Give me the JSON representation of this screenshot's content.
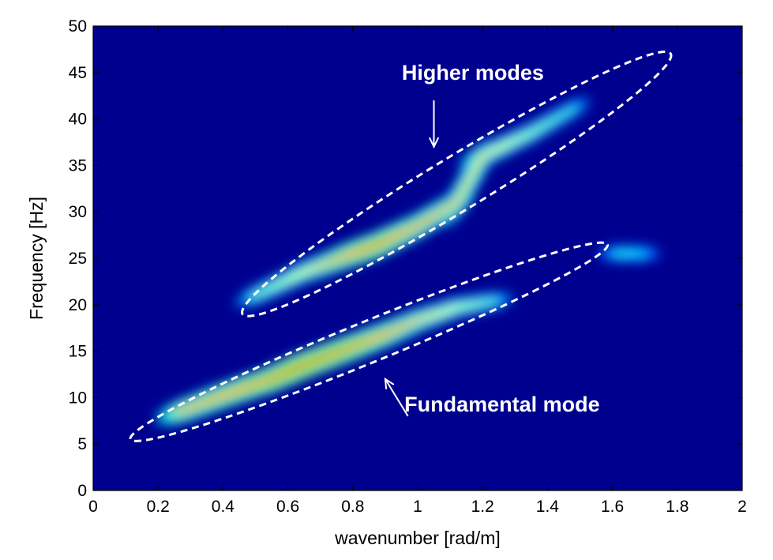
{
  "chart_data": {
    "type": "heatmap",
    "title": "",
    "xlabel": "wavenumber [rad/m]",
    "ylabel": "Frequency [Hz]",
    "xlim": [
      0,
      2
    ],
    "ylim": [
      0,
      50
    ],
    "xticks": [
      0,
      0.2,
      0.4,
      0.6,
      0.8,
      1,
      1.2,
      1.4,
      1.6,
      1.8,
      2
    ],
    "xtick_labels": [
      "0",
      "0.2",
      "0.4",
      "0.6",
      "0.8",
      "1",
      "1.2",
      "1.4",
      "1.6",
      "1.8",
      "2"
    ],
    "yticks": [
      0,
      5,
      10,
      15,
      20,
      25,
      30,
      35,
      40,
      45,
      50
    ],
    "ytick_labels": [
      "0",
      "5",
      "10",
      "15",
      "20",
      "25",
      "30",
      "35",
      "40",
      "45",
      "50"
    ],
    "grid": false,
    "colormap": "jet",
    "colors": {
      "background": "#00008f",
      "low": "#0000ff",
      "mid": "#00ffff",
      "high": "#ffff00",
      "peak": "#8b0000",
      "annotation": "#ffffff"
    },
    "energy_ridges": [
      {
        "points": [
          {
            "k": 0.27,
            "f": 8.5,
            "amp": 0.75
          },
          {
            "k": 0.4,
            "f": 10.2,
            "amp": 0.85
          },
          {
            "k": 0.55,
            "f": 12.0,
            "amp": 0.93
          },
          {
            "k": 0.65,
            "f": 13.5,
            "amp": 1.0
          },
          {
            "k": 0.78,
            "f": 15.2,
            "amp": 0.95
          },
          {
            "k": 0.9,
            "f": 16.8,
            "amp": 0.85
          },
          {
            "k": 1.0,
            "f": 18.3,
            "amp": 0.7
          },
          {
            "k": 1.12,
            "f": 19.7,
            "amp": 0.55
          },
          {
            "k": 1.25,
            "f": 20.5,
            "amp": 0.4
          }
        ]
      },
      {
        "points": [
          {
            "k": 0.5,
            "f": 21.0,
            "amp": 0.45
          },
          {
            "k": 0.65,
            "f": 23.5,
            "amp": 0.6
          },
          {
            "k": 0.8,
            "f": 25.5,
            "amp": 0.85
          },
          {
            "k": 0.88,
            "f": 26.5,
            "amp": 0.92
          },
          {
            "k": 1.0,
            "f": 28.5,
            "amp": 0.8
          },
          {
            "k": 1.12,
            "f": 31.0,
            "amp": 0.7
          },
          {
            "k": 1.2,
            "f": 36.0,
            "amp": 0.65
          },
          {
            "k": 1.35,
            "f": 38.5,
            "amp": 0.5
          },
          {
            "k": 1.5,
            "f": 41.5,
            "amp": 0.35
          }
        ]
      },
      {
        "points": [
          {
            "k": 1.62,
            "f": 25.5,
            "amp": 0.35
          },
          {
            "k": 1.7,
            "f": 25.5,
            "amp": 0.3
          }
        ]
      }
    ],
    "annotations": [
      {
        "text": "Higher modes",
        "label_at": {
          "k": 1.17,
          "f": 44.2
        },
        "arrow_from": {
          "k": 1.05,
          "f": 42.0
        },
        "arrow_to": {
          "k": 1.05,
          "f": 37.0
        },
        "ellipse": {
          "center": {
            "k": 1.12,
            "f": 33.0
          },
          "span_k": [
            0.46,
            1.78
          ],
          "span_f": [
            19.5,
            47.5
          ]
        }
      },
      {
        "text": "Fundamental mode",
        "label_at": {
          "k": 1.26,
          "f": 8.5
        },
        "arrow_from": {
          "k": 0.97,
          "f": 8.0
        },
        "arrow_to": {
          "k": 0.9,
          "f": 12.0
        },
        "ellipse": {
          "center": {
            "k": 0.85,
            "f": 16.0
          },
          "span_k": [
            0.11,
            1.58
          ],
          "span_f": [
            5.5,
            26.5
          ]
        }
      }
    ]
  }
}
